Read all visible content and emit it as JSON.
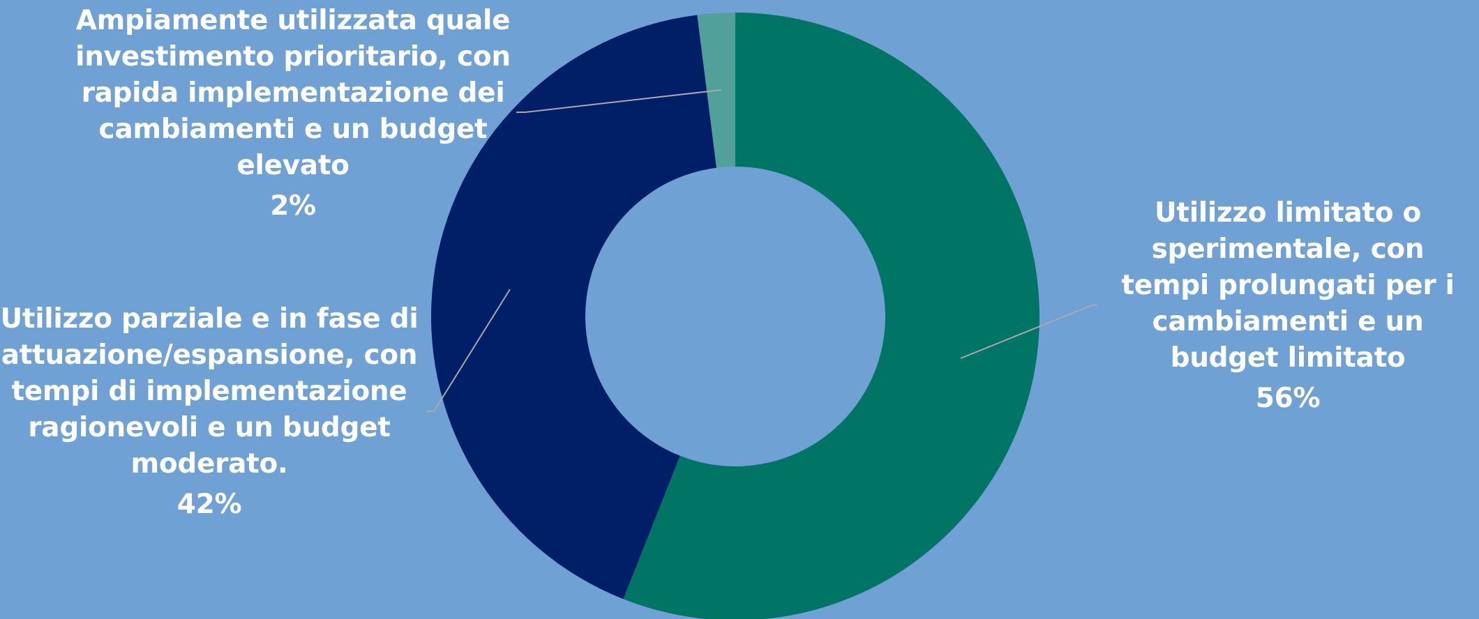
{
  "colors": {
    "background": "#6fa1d4",
    "leader_line": "#a9a9a9"
  },
  "chart_data": {
    "type": "pie",
    "variant": "donut",
    "slices": [
      {
        "label": "Utilizzo limitato o sperimentale, con tempi prolungati per i cambiamenti e un budget limitato",
        "value": 56,
        "display": "56%",
        "color": "#007566"
      },
      {
        "label": "Utilizzo parziale e in fase di attuazione/espansione, con tempi di implementazione ragionevoli e un budget moderato.",
        "value": 42,
        "display": "42%",
        "color": "#001f66"
      },
      {
        "label": "Ampiamente utilizzata quale investimento prioritario, con rapida implementazione dei cambiamenti e un budget elevato",
        "value": 2,
        "display": "2%",
        "color": "#51a19a"
      }
    ],
    "legend": "none",
    "data_labels": "outside-with-leader-lines"
  }
}
